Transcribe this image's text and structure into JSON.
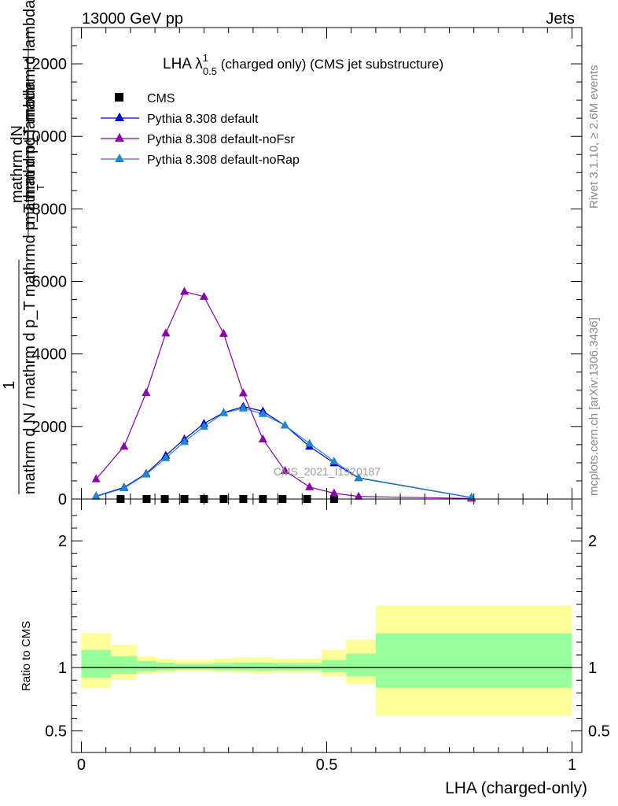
{
  "header": {
    "energy_label": "13000 GeV pp",
    "process_label": "Jets",
    "rivet_label": "Rivet 3.1.10, ≥ 2.6M events",
    "mcplots_label": "mcplots.cern.ch [arXiv:1306.3436]",
    "analysis_watermark": "CMS_2021_I1920187"
  },
  "chart_data": [
    {
      "type": "line",
      "title_main": "LHA λ",
      "title_sup": "1",
      "title_sub": "0.5",
      "title_rest": " (charged only) (CMS jet substructure)",
      "ylabel_lines": [
        "mathrm dN",
        "mathrm d p_T mathrm d lambda",
        "1",
        "mathrm d N / mathrm d p_T mathrmd p_T mathrmd lambda"
      ],
      "ylabel_note": "T",
      "ylim": [
        0,
        13000
      ],
      "yticks": [
        {
          "value": 0,
          "label": "0"
        },
        {
          "value": 2000,
          "label": "2000"
        },
        {
          "value": 4000,
          "label": "4000"
        },
        {
          "value": 6000,
          "label": "6000"
        },
        {
          "value": 8000,
          "label": "8000"
        },
        {
          "value": 10000,
          "label": "10000"
        },
        {
          "value": 12000,
          "label": "12000"
        }
      ],
      "xlim": [
        -0.02,
        1.02
      ],
      "legend_position": "top-left",
      "series": [
        {
          "name": "CMS",
          "marker": "square",
          "color": "#000000",
          "x": [
            0.08,
            0.133,
            0.17,
            0.21,
            0.25,
            0.29,
            0.33,
            0.37,
            0.41,
            0.46,
            0.515
          ],
          "y": [
            0,
            0,
            0,
            0,
            0,
            0,
            0,
            0,
            0,
            0,
            0
          ]
        },
        {
          "name": "Pythia 8.308 default",
          "marker": "triangle",
          "color": "#0000cc",
          "x": [
            0.03,
            0.087,
            0.132,
            0.172,
            0.21,
            0.25,
            0.29,
            0.33,
            0.37,
            0.415,
            0.465,
            0.515,
            0.565,
            0.795
          ],
          "y": [
            80,
            320,
            700,
            1200,
            1650,
            2080,
            2380,
            2550,
            2420,
            2030,
            1450,
            990,
            580,
            40
          ]
        },
        {
          "name": "Pythia 8.308 default-noFsr",
          "marker": "triangle",
          "color": "#8800aa",
          "x": [
            0.03,
            0.087,
            0.132,
            0.172,
            0.21,
            0.25,
            0.29,
            0.33,
            0.37,
            0.415,
            0.465,
            0.515,
            0.565,
            0.795
          ],
          "y": [
            550,
            1450,
            2930,
            4570,
            5720,
            5580,
            4560,
            2920,
            1650,
            780,
            330,
            160,
            70,
            15
          ]
        },
        {
          "name": "Pythia 8.308 default-noRap",
          "marker": "triangle",
          "color": "#1e88c8",
          "x": [
            0.03,
            0.087,
            0.132,
            0.172,
            0.21,
            0.25,
            0.29,
            0.33,
            0.37,
            0.415,
            0.465,
            0.515,
            0.565,
            0.795
          ],
          "y": [
            70,
            300,
            680,
            1130,
            1580,
            2000,
            2370,
            2500,
            2350,
            2030,
            1530,
            1040,
            590,
            45
          ]
        }
      ]
    },
    {
      "type": "area",
      "ylabel": "Ratio to CMS",
      "xlabel": "LHA (charged-only)",
      "ylim": [
        0.33,
        2.33
      ],
      "xlim": [
        -0.02,
        1.02
      ],
      "yticks": [
        {
          "value": 0.5,
          "label": "0.5"
        },
        {
          "value": 1,
          "label": "1"
        },
        {
          "value": 2,
          "label": "2"
        }
      ],
      "xticks": [
        {
          "value": 0,
          "label": "0"
        },
        {
          "value": 0.5,
          "label": "0.5"
        },
        {
          "value": 1,
          "label": "1"
        }
      ],
      "reference_line": 1,
      "band_colors": {
        "outer": "#ffff99",
        "inner": "#99ff99"
      },
      "bins": [
        {
          "lo": 0.0,
          "hi": 0.06,
          "outer": [
            0.84,
            1.27
          ],
          "inner": [
            0.92,
            1.14
          ]
        },
        {
          "lo": 0.06,
          "hi": 0.113,
          "outer": [
            0.9,
            1.18
          ],
          "inner": [
            0.95,
            1.09
          ]
        },
        {
          "lo": 0.113,
          "hi": 0.153,
          "outer": [
            0.95,
            1.09
          ],
          "inner": [
            0.97,
            1.05
          ]
        },
        {
          "lo": 0.153,
          "hi": 0.19,
          "outer": [
            0.96,
            1.07
          ],
          "inner": [
            0.98,
            1.04
          ]
        },
        {
          "lo": 0.19,
          "hi": 0.23,
          "outer": [
            0.97,
            1.06
          ],
          "inner": [
            0.985,
            1.03
          ]
        },
        {
          "lo": 0.23,
          "hi": 0.27,
          "outer": [
            0.97,
            1.06
          ],
          "inner": [
            0.985,
            1.03
          ]
        },
        {
          "lo": 0.27,
          "hi": 0.31,
          "outer": [
            0.965,
            1.07
          ],
          "inner": [
            0.98,
            1.035
          ]
        },
        {
          "lo": 0.31,
          "hi": 0.35,
          "outer": [
            0.96,
            1.08
          ],
          "inner": [
            0.98,
            1.04
          ]
        },
        {
          "lo": 0.35,
          "hi": 0.39,
          "outer": [
            0.95,
            1.08
          ],
          "inner": [
            0.975,
            1.04
          ]
        },
        {
          "lo": 0.39,
          "hi": 0.435,
          "outer": [
            0.96,
            1.07
          ],
          "inner": [
            0.98,
            1.035
          ]
        },
        {
          "lo": 0.435,
          "hi": 0.49,
          "outer": [
            0.96,
            1.07
          ],
          "inner": [
            0.98,
            1.035
          ]
        },
        {
          "lo": 0.49,
          "hi": 0.54,
          "outer": [
            0.93,
            1.14
          ],
          "inner": [
            0.965,
            1.06
          ]
        },
        {
          "lo": 0.54,
          "hi": 0.6,
          "outer": [
            0.87,
            1.22
          ],
          "inner": [
            0.93,
            1.11
          ]
        },
        {
          "lo": 0.6,
          "hi": 1.0,
          "outer": [
            0.62,
            1.49
          ],
          "inner": [
            0.84,
            1.27
          ]
        }
      ]
    }
  ]
}
